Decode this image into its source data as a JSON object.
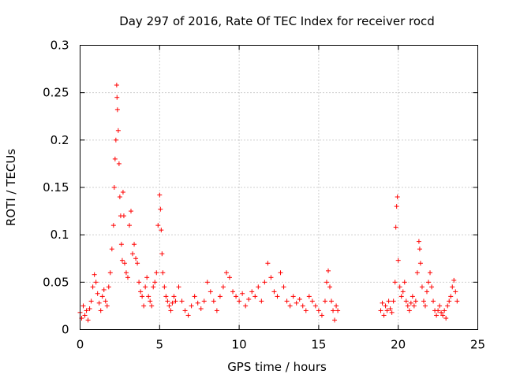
{
  "chart_data": {
    "type": "scatter",
    "title": "Day 297 of 2016, Rate Of TEC Index for receiver rocd",
    "xlabel": "GPS time / hours",
    "ylabel": "ROTI / TECUs",
    "xlim": [
      0,
      25
    ],
    "ylim": [
      0,
      0.3
    ],
    "grid": true,
    "marker": "+",
    "color": "#ff0000",
    "x_ticks": [
      0,
      5,
      10,
      15,
      20,
      25
    ],
    "y_ticks": [
      0,
      0.05,
      0.1,
      0.15,
      0.2,
      0.25,
      0.3
    ],
    "x_tick_labels": [
      "0",
      "5",
      "10",
      "15",
      "20",
      "25"
    ],
    "y_tick_labels": [
      "0",
      "0.05",
      "0.1",
      "0.15",
      "0.2",
      "0.25",
      "0.3"
    ],
    "series": [
      {
        "name": "ROTI",
        "points": [
          [
            0.0,
            0.018
          ],
          [
            0.1,
            0.012
          ],
          [
            0.2,
            0.025
          ],
          [
            0.3,
            0.015
          ],
          [
            0.4,
            0.02
          ],
          [
            0.5,
            0.01
          ],
          [
            0.6,
            0.022
          ],
          [
            0.7,
            0.03
          ],
          [
            0.8,
            0.045
          ],
          [
            0.9,
            0.058
          ],
          [
            1.0,
            0.05
          ],
          [
            1.1,
            0.038
          ],
          [
            1.2,
            0.028
          ],
          [
            1.3,
            0.02
          ],
          [
            1.4,
            0.035
          ],
          [
            1.5,
            0.042
          ],
          [
            1.6,
            0.03
          ],
          [
            1.7,
            0.025
          ],
          [
            1.8,
            0.045
          ],
          [
            1.9,
            0.06
          ],
          [
            2.0,
            0.085
          ],
          [
            2.1,
            0.11
          ],
          [
            2.15,
            0.15
          ],
          [
            2.2,
            0.18
          ],
          [
            2.25,
            0.2
          ],
          [
            2.3,
            0.258
          ],
          [
            2.32,
            0.245
          ],
          [
            2.35,
            0.232
          ],
          [
            2.4,
            0.21
          ],
          [
            2.45,
            0.175
          ],
          [
            2.5,
            0.14
          ],
          [
            2.55,
            0.12
          ],
          [
            2.6,
            0.09
          ],
          [
            2.65,
            0.073
          ],
          [
            2.7,
            0.145
          ],
          [
            2.75,
            0.12
          ],
          [
            2.8,
            0.07
          ],
          [
            2.9,
            0.06
          ],
          [
            3.0,
            0.055
          ],
          [
            3.1,
            0.11
          ],
          [
            3.2,
            0.125
          ],
          [
            3.3,
            0.08
          ],
          [
            3.4,
            0.09
          ],
          [
            3.5,
            0.075
          ],
          [
            3.6,
            0.07
          ],
          [
            3.7,
            0.05
          ],
          [
            3.8,
            0.04
          ],
          [
            3.9,
            0.035
          ],
          [
            4.0,
            0.025
          ],
          [
            4.1,
            0.045
          ],
          [
            4.2,
            0.055
          ],
          [
            4.3,
            0.035
          ],
          [
            4.4,
            0.03
          ],
          [
            4.5,
            0.025
          ],
          [
            4.6,
            0.045
          ],
          [
            4.7,
            0.05
          ],
          [
            4.8,
            0.06
          ],
          [
            4.9,
            0.11
          ],
          [
            5.0,
            0.142
          ],
          [
            5.05,
            0.127
          ],
          [
            5.1,
            0.105
          ],
          [
            5.15,
            0.08
          ],
          [
            5.2,
            0.06
          ],
          [
            5.3,
            0.045
          ],
          [
            5.4,
            0.035
          ],
          [
            5.5,
            0.03
          ],
          [
            5.6,
            0.025
          ],
          [
            5.7,
            0.02
          ],
          [
            5.8,
            0.028
          ],
          [
            5.9,
            0.035
          ],
          [
            6.0,
            0.03
          ],
          [
            6.2,
            0.045
          ],
          [
            6.4,
            0.03
          ],
          [
            6.6,
            0.02
          ],
          [
            6.8,
            0.015
          ],
          [
            7.0,
            0.025
          ],
          [
            7.2,
            0.035
          ],
          [
            7.4,
            0.028
          ],
          [
            7.6,
            0.022
          ],
          [
            7.8,
            0.03
          ],
          [
            8.0,
            0.05
          ],
          [
            8.2,
            0.04
          ],
          [
            8.4,
            0.03
          ],
          [
            8.6,
            0.02
          ],
          [
            8.8,
            0.035
          ],
          [
            9.0,
            0.045
          ],
          [
            9.2,
            0.06
          ],
          [
            9.4,
            0.055
          ],
          [
            9.6,
            0.04
          ],
          [
            9.8,
            0.035
          ],
          [
            10.0,
            0.03
          ],
          [
            10.2,
            0.038
          ],
          [
            10.4,
            0.025
          ],
          [
            10.6,
            0.032
          ],
          [
            10.8,
            0.04
          ],
          [
            11.0,
            0.035
          ],
          [
            11.2,
            0.045
          ],
          [
            11.4,
            0.03
          ],
          [
            11.6,
            0.05
          ],
          [
            11.8,
            0.07
          ],
          [
            12.0,
            0.055
          ],
          [
            12.2,
            0.04
          ],
          [
            12.4,
            0.035
          ],
          [
            12.6,
            0.06
          ],
          [
            12.8,
            0.045
          ],
          [
            13.0,
            0.03
          ],
          [
            13.2,
            0.025
          ],
          [
            13.4,
            0.035
          ],
          [
            13.6,
            0.028
          ],
          [
            13.8,
            0.032
          ],
          [
            14.0,
            0.025
          ],
          [
            14.2,
            0.02
          ],
          [
            14.4,
            0.035
          ],
          [
            14.6,
            0.03
          ],
          [
            14.8,
            0.025
          ],
          [
            15.0,
            0.02
          ],
          [
            15.2,
            0.015
          ],
          [
            15.4,
            0.03
          ],
          [
            15.5,
            0.05
          ],
          [
            15.6,
            0.062
          ],
          [
            15.7,
            0.045
          ],
          [
            15.8,
            0.03
          ],
          [
            15.9,
            0.02
          ],
          [
            16.0,
            0.01
          ],
          [
            16.1,
            0.025
          ],
          [
            16.2,
            0.02
          ],
          [
            18.9,
            0.02
          ],
          [
            19.0,
            0.028
          ],
          [
            19.1,
            0.015
          ],
          [
            19.2,
            0.025
          ],
          [
            19.3,
            0.02
          ],
          [
            19.4,
            0.03
          ],
          [
            19.5,
            0.022
          ],
          [
            19.6,
            0.018
          ],
          [
            19.7,
            0.03
          ],
          [
            19.8,
            0.05
          ],
          [
            19.85,
            0.108
          ],
          [
            19.9,
            0.13
          ],
          [
            19.95,
            0.14
          ],
          [
            20.0,
            0.073
          ],
          [
            20.1,
            0.045
          ],
          [
            20.2,
            0.035
          ],
          [
            20.3,
            0.04
          ],
          [
            20.4,
            0.05
          ],
          [
            20.5,
            0.03
          ],
          [
            20.6,
            0.025
          ],
          [
            20.7,
            0.02
          ],
          [
            20.8,
            0.028
          ],
          [
            20.9,
            0.035
          ],
          [
            21.0,
            0.025
          ],
          [
            21.1,
            0.03
          ],
          [
            21.2,
            0.06
          ],
          [
            21.3,
            0.093
          ],
          [
            21.35,
            0.085
          ],
          [
            21.4,
            0.07
          ],
          [
            21.5,
            0.045
          ],
          [
            21.6,
            0.03
          ],
          [
            21.7,
            0.025
          ],
          [
            21.8,
            0.04
          ],
          [
            21.9,
            0.05
          ],
          [
            22.0,
            0.06
          ],
          [
            22.1,
            0.045
          ],
          [
            22.2,
            0.03
          ],
          [
            22.3,
            0.02
          ],
          [
            22.4,
            0.015
          ],
          [
            22.5,
            0.02
          ],
          [
            22.6,
            0.025
          ],
          [
            22.7,
            0.018
          ],
          [
            22.8,
            0.015
          ],
          [
            22.9,
            0.02
          ],
          [
            23.0,
            0.012
          ],
          [
            23.1,
            0.025
          ],
          [
            23.2,
            0.03
          ],
          [
            23.3,
            0.035
          ],
          [
            23.4,
            0.045
          ],
          [
            23.5,
            0.052
          ],
          [
            23.6,
            0.04
          ],
          [
            23.7,
            0.03
          ]
        ]
      }
    ]
  }
}
